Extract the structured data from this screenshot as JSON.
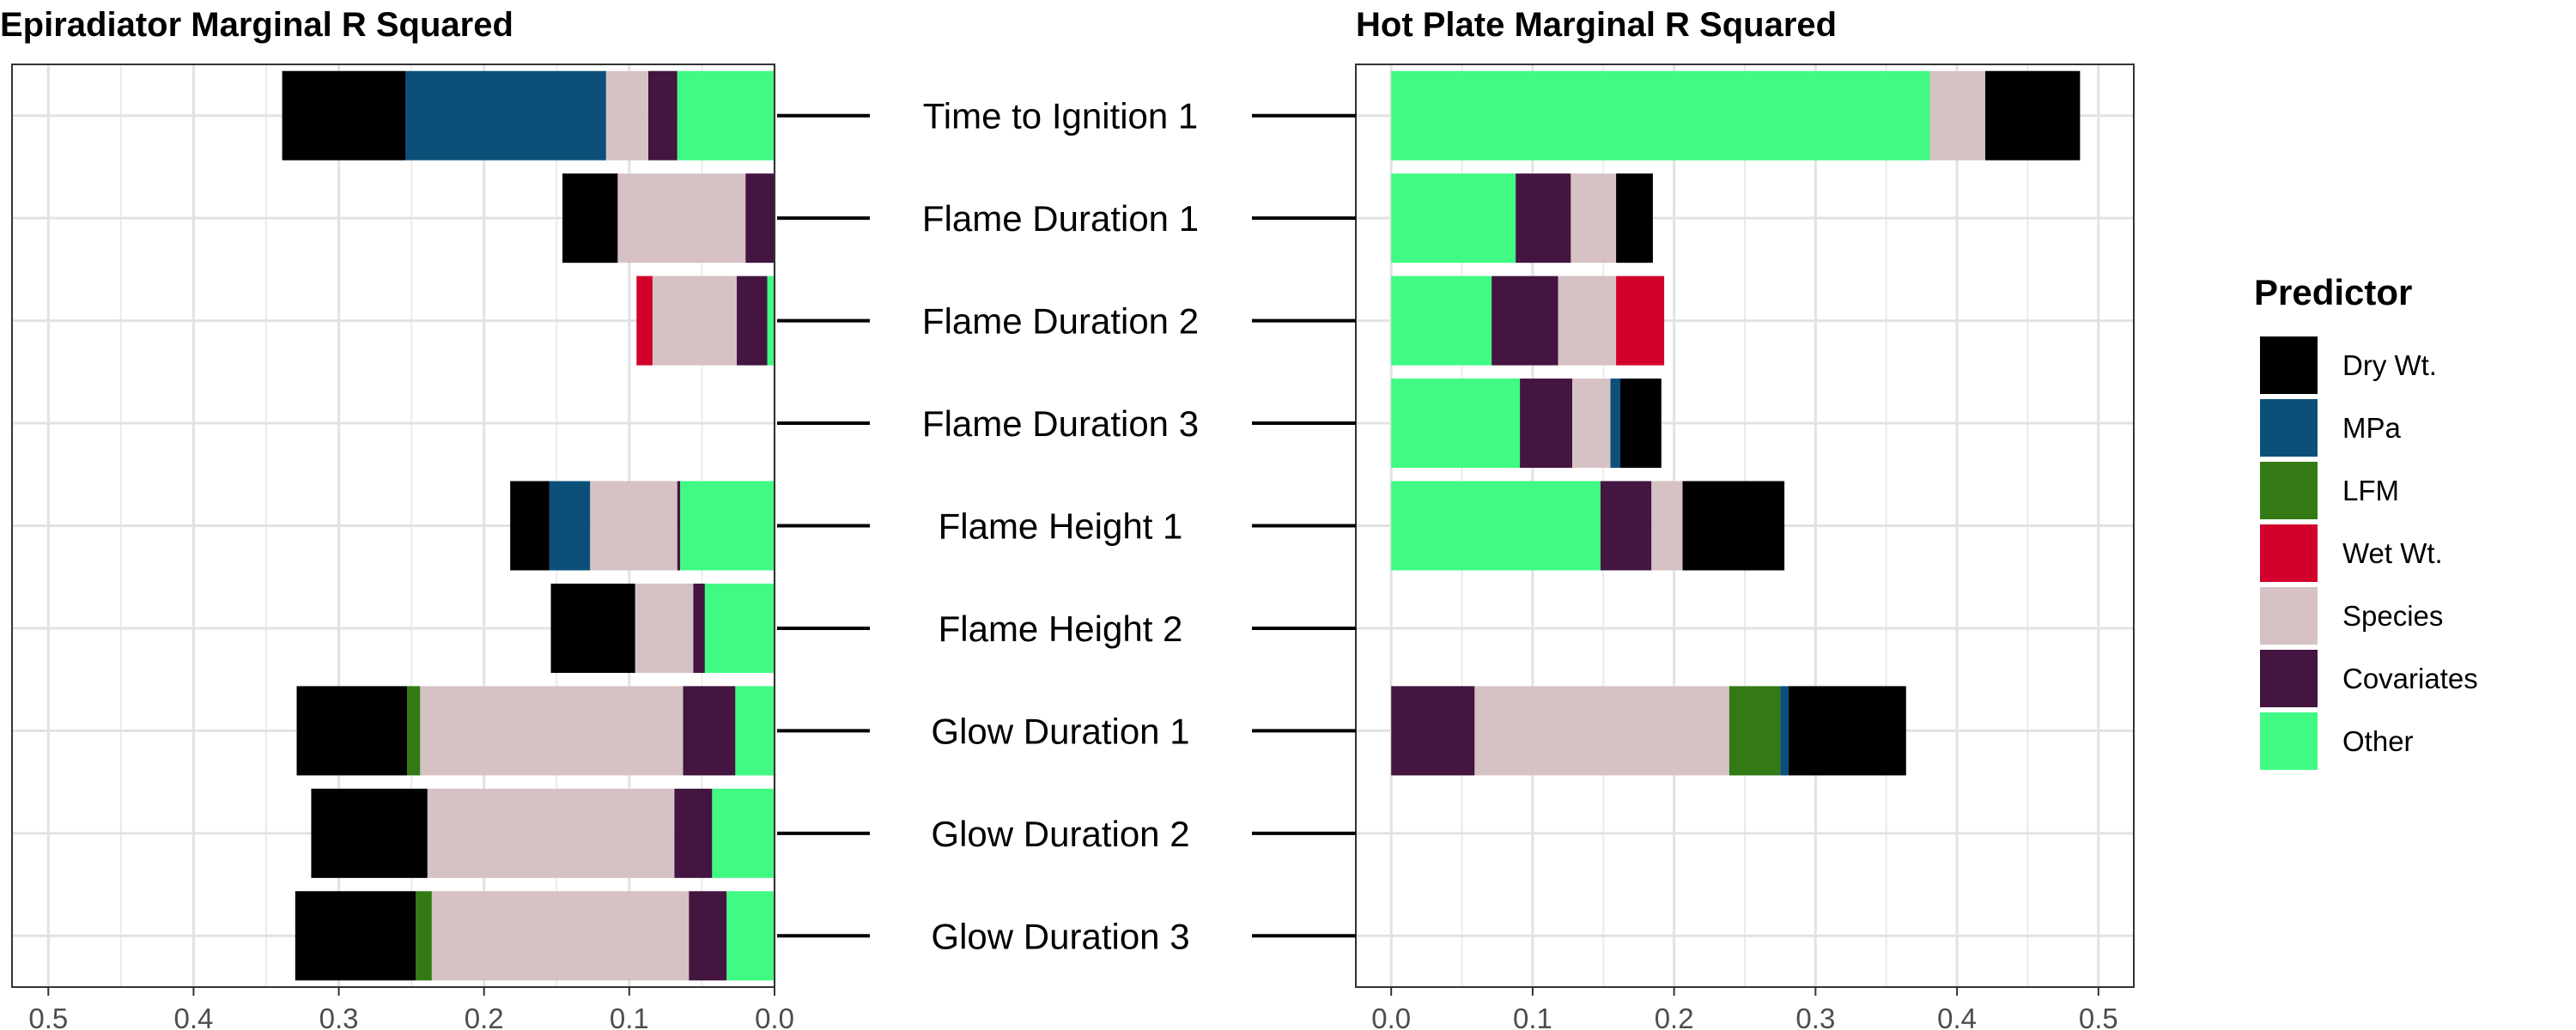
{
  "chart_data": [
    {
      "type": "bar",
      "orientation": "horizontal",
      "stacked": true,
      "x_reversed": true,
      "title": "Epiradiator Marginal R Squared",
      "xlim": [
        0.525,
        0.0
      ],
      "x_ticks": [
        "0.5",
        "0.4",
        "0.3",
        "0.2",
        "0.1",
        "0.0"
      ],
      "x_tick_values": [
        0.5,
        0.4,
        0.3,
        0.2,
        0.1,
        0.0
      ],
      "grid": true,
      "categories": [
        "Time to Ignition 1",
        "Flame Duration 1",
        "Flame Duration 2",
        "Flame Duration 3",
        "Flame Height 1",
        "Flame Height 2",
        "Glow Duration 1",
        "Glow Duration 2",
        "Glow Duration 3"
      ],
      "series": [
        {
          "name": "Other",
          "values": [
            0.067,
            0.0,
            0.005,
            0.0,
            0.065,
            0.048,
            0.027,
            0.043,
            0.033
          ]
        },
        {
          "name": "Covariates",
          "values": [
            0.02,
            0.02,
            0.021,
            0.0,
            0.002,
            0.008,
            0.036,
            0.026,
            0.026
          ]
        },
        {
          "name": "Species",
          "values": [
            0.029,
            0.088,
            0.058,
            0.0,
            0.06,
            0.04,
            0.181,
            0.17,
            0.177
          ]
        },
        {
          "name": "Wet Wt.",
          "values": [
            0.0,
            0.0,
            0.011,
            0.0,
            0.0,
            0.0,
            0.0,
            0.0,
            0.0
          ]
        },
        {
          "name": "LFM",
          "values": [
            0.0,
            0.0,
            0.0,
            0.0,
            0.0,
            0.0,
            0.009,
            0.0,
            0.011
          ]
        },
        {
          "name": "MPa",
          "values": [
            0.138,
            0.0,
            0.0,
            0.0,
            0.028,
            0.0,
            0.0,
            0.0,
            0.0
          ]
        },
        {
          "name": "Dry Wt.",
          "values": [
            0.085,
            0.038,
            0.0,
            0.0,
            0.027,
            0.058,
            0.076,
            0.08,
            0.083
          ]
        }
      ]
    },
    {
      "type": "bar",
      "orientation": "horizontal",
      "stacked": true,
      "title": "Hot Plate Marginal R Squared",
      "xlim": [
        -0.025,
        0.525
      ],
      "x_ticks": [
        "0.0",
        "0.1",
        "0.2",
        "0.3",
        "0.4",
        "0.5"
      ],
      "x_tick_values": [
        0.0,
        0.1,
        0.2,
        0.3,
        0.4,
        0.5
      ],
      "grid": true,
      "categories": [
        "Time to Ignition 1",
        "Flame Duration 1",
        "Flame Duration 2",
        "Flame Duration 3",
        "Flame Height 1",
        "Flame Height 2",
        "Glow Duration 1",
        "Glow Duration 2",
        "Glow Duration 3"
      ],
      "series": [
        {
          "name": "Other",
          "values": [
            0.381,
            0.088,
            0.071,
            0.091,
            0.148,
            0.0,
            0.0,
            0.0,
            0.0
          ]
        },
        {
          "name": "Covariates",
          "values": [
            0.0,
            0.039,
            0.047,
            0.037,
            0.036,
            0.0,
            0.059,
            0.0,
            0.0
          ]
        },
        {
          "name": "Species",
          "values": [
            0.039,
            0.032,
            0.041,
            0.027,
            0.022,
            0.0,
            0.18,
            0.0,
            0.0
          ]
        },
        {
          "name": "Wet Wt.",
          "values": [
            0.0,
            0.0,
            0.034,
            0.0,
            0.0,
            0.0,
            0.0,
            0.0,
            0.0
          ]
        },
        {
          "name": "LFM",
          "values": [
            0.0,
            0.0,
            0.0,
            0.0,
            0.0,
            0.0,
            0.036,
            0.0,
            0.0
          ]
        },
        {
          "name": "MPa",
          "values": [
            0.0,
            0.0,
            0.0,
            0.007,
            0.0,
            0.0,
            0.006,
            0.0,
            0.0
          ]
        },
        {
          "name": "Dry Wt.",
          "values": [
            0.067,
            0.026,
            0.0,
            0.029,
            0.072,
            0.0,
            0.083,
            0.0,
            0.0
          ]
        }
      ]
    }
  ],
  "legend": {
    "title": "Predictor",
    "placement": "right",
    "items": [
      {
        "label": "Dry Wt.",
        "color": "#000000"
      },
      {
        "label": "MPa",
        "color": "#0c5079"
      },
      {
        "label": "LFM",
        "color": "#337a14"
      },
      {
        "label": "Wet Wt.",
        "color": "#d2002a"
      },
      {
        "label": "Species",
        "color": "#d6c2c4"
      },
      {
        "label": "Covariates",
        "color": "#431540"
      },
      {
        "label": "Other",
        "color": "#40fa84"
      }
    ]
  }
}
